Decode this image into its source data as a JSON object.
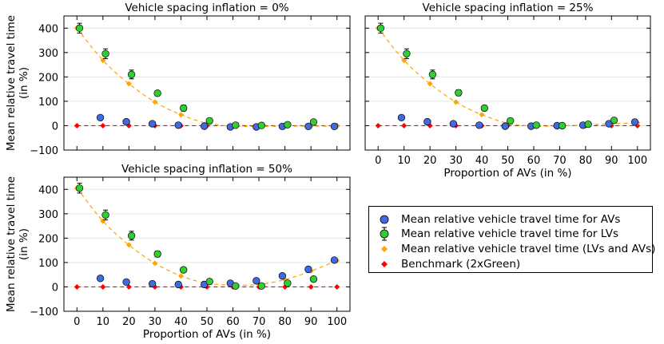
{
  "chart_data": [
    {
      "type": "scatter",
      "title": "Vehicle spacing inflation = 0%",
      "xlabel": "",
      "ylabel": "Mean relative travel time\n(in %)",
      "xlim": [
        -5,
        105
      ],
      "ylim": [
        -100,
        450
      ],
      "xticks": [
        0,
        10,
        20,
        30,
        40,
        50,
        60,
        70,
        80,
        90,
        100
      ],
      "yticks": [
        -100,
        0,
        100,
        200,
        300,
        400
      ],
      "xtick_labels_visible": false,
      "series": [
        {
          "name": "AVs",
          "x": [
            9,
            19,
            29,
            39,
            49,
            59,
            69,
            79,
            89,
            99
          ],
          "y": [
            33,
            16,
            8,
            2,
            -2,
            -5,
            -5,
            -3,
            -3,
            -3
          ]
        },
        {
          "name": "LVs",
          "x": [
            1,
            11,
            21,
            31,
            41,
            51,
            61,
            71,
            81,
            91
          ],
          "y": [
            400,
            295,
            210,
            133,
            72,
            20,
            2,
            1,
            4,
            15
          ],
          "err": [
            20,
            20,
            18,
            10,
            12,
            5,
            4,
            3,
            3,
            4
          ]
        },
        {
          "name": "Mixed",
          "x": [
            0,
            10,
            20,
            30,
            40,
            50,
            60,
            70,
            80,
            90,
            100
          ],
          "y": [
            400,
            268,
            172,
            97,
            45,
            10,
            -2,
            -3,
            -2,
            -2,
            -2
          ]
        },
        {
          "name": "Benchmark",
          "x": [
            0,
            10,
            20,
            30,
            40,
            50,
            60,
            70,
            80,
            90,
            100
          ],
          "y": [
            0,
            0,
            0,
            0,
            0,
            0,
            0,
            0,
            0,
            0,
            0
          ]
        }
      ]
    },
    {
      "type": "scatter",
      "title": "Vehicle spacing inflation = 25%",
      "xlabel": "Proportion of AVs (in %)",
      "ylabel": "",
      "xlim": [
        -5,
        105
      ],
      "ylim": [
        -100,
        450
      ],
      "xticks": [
        0,
        10,
        20,
        30,
        40,
        50,
        60,
        70,
        80,
        90,
        100
      ],
      "yticks": [
        -100,
        0,
        100,
        200,
        300,
        400
      ],
      "xtick_labels_visible": true,
      "series": [
        {
          "name": "AVs",
          "x": [
            9,
            19,
            29,
            39,
            49,
            59,
            69,
            79,
            89,
            99
          ],
          "y": [
            33,
            16,
            8,
            2,
            -2,
            -2,
            0,
            2,
            8,
            15
          ]
        },
        {
          "name": "LVs",
          "x": [
            1,
            11,
            21,
            31,
            41,
            51,
            61,
            71,
            81,
            91
          ],
          "y": [
            400,
            295,
            210,
            135,
            72,
            20,
            2,
            0,
            6,
            22
          ],
          "err": [
            20,
            20,
            18,
            12,
            10,
            5,
            4,
            3,
            3,
            4
          ]
        },
        {
          "name": "Mixed",
          "x": [
            0,
            10,
            20,
            30,
            40,
            50,
            60,
            70,
            80,
            90,
            100
          ],
          "y": [
            400,
            268,
            172,
            97,
            45,
            10,
            -2,
            -1,
            3,
            8,
            12
          ]
        },
        {
          "name": "Benchmark",
          "x": [
            0,
            10,
            20,
            30,
            40,
            50,
            60,
            70,
            80,
            90,
            100
          ],
          "y": [
            0,
            0,
            0,
            0,
            0,
            0,
            0,
            0,
            0,
            0,
            0
          ]
        }
      ]
    },
    {
      "type": "scatter",
      "title": "Vehicle spacing inflation = 50%",
      "xlabel": "Proportion of AVs (in %)",
      "ylabel": "Mean relative travel time\n(in %)",
      "xlim": [
        -5,
        105
      ],
      "ylim": [
        -100,
        450
      ],
      "xticks": [
        0,
        10,
        20,
        30,
        40,
        50,
        60,
        70,
        80,
        90,
        100
      ],
      "yticks": [
        -100,
        0,
        100,
        200,
        300,
        400
      ],
      "xtick_labels_visible": true,
      "series": [
        {
          "name": "AVs",
          "x": [
            9,
            19,
            29,
            39,
            49,
            59,
            69,
            79,
            89,
            99
          ],
          "y": [
            35,
            20,
            13,
            10,
            10,
            15,
            25,
            45,
            72,
            110
          ]
        },
        {
          "name": "LVs",
          "x": [
            1,
            11,
            21,
            31,
            41,
            51,
            61,
            71,
            81,
            91
          ],
          "y": [
            405,
            295,
            210,
            135,
            70,
            22,
            4,
            4,
            15,
            32
          ],
          "err": [
            20,
            20,
            18,
            12,
            10,
            5,
            4,
            3,
            3,
            4
          ]
        },
        {
          "name": "Mixed",
          "x": [
            0,
            10,
            20,
            30,
            40,
            50,
            60,
            70,
            80,
            90,
            100
          ],
          "y": [
            405,
            270,
            172,
            97,
            45,
            15,
            8,
            10,
            30,
            65,
            108
          ]
        },
        {
          "name": "Benchmark",
          "x": [
            0,
            10,
            20,
            30,
            40,
            50,
            60,
            70,
            80,
            90,
            100
          ],
          "y": [
            0,
            0,
            0,
            0,
            0,
            0,
            0,
            0,
            0,
            0,
            0
          ]
        }
      ]
    }
  ],
  "legend": {
    "items": [
      {
        "label": "Mean relative vehicle travel time for AVs",
        "marker": "circle",
        "color": "#4169e1"
      },
      {
        "label": "Mean relative vehicle travel time for LVs",
        "marker": "circle-errorbar",
        "color": "#32cd32"
      },
      {
        "label": "Mean relative vehicle travel time (LVs and AVs)",
        "marker": "diamond",
        "color": "#ffa500"
      },
      {
        "label": "Benchmark (2xGreen)",
        "marker": "diamond",
        "color": "#ff0000"
      }
    ]
  },
  "colors": {
    "av": "#4169e1",
    "lv": "#32cd32",
    "mixed": "#ffa500",
    "benchmark": "#ff0000"
  }
}
